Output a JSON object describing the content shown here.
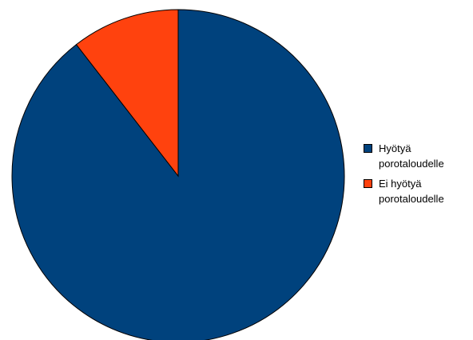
{
  "chart_data": {
    "type": "pie",
    "title": "",
    "start_angle_deg": 0,
    "direction": "clockwise",
    "series": [
      {
        "name": "",
        "values": [
          {
            "label": "Hyötyä\nporotaloudelle",
            "value": 89.5,
            "color": "#00427d"
          },
          {
            "label": "Ei hyötyä\nporotaloudelle",
            "value": 10.5,
            "color": "#ff420e"
          }
        ]
      }
    ],
    "legend_position": "right",
    "slice_border_color": "#000000"
  }
}
